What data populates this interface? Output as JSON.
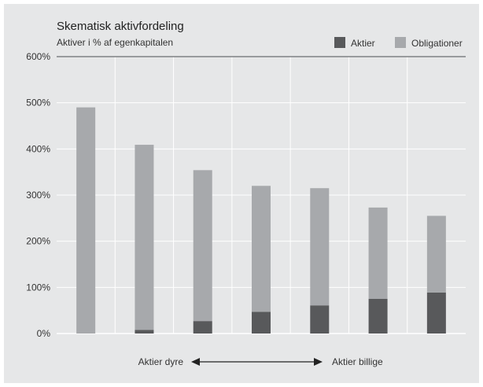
{
  "chart_data": {
    "type": "bar",
    "stacked": true,
    "title": "Skematisk aktivfordeling",
    "subtitle": "Aktiver i % af egenkapitalen",
    "categories": [
      "",
      "",
      "",
      "",
      "",
      "",
      ""
    ],
    "series": [
      {
        "name": "Aktier",
        "color": "#58595b",
        "values": [
          0,
          8,
          27,
          47,
          61,
          75,
          89
        ]
      },
      {
        "name": "Obligationer",
        "color": "#a7a9ac",
        "values": [
          490,
          401,
          327,
          273,
          254,
          198,
          166
        ]
      }
    ],
    "ylim": [
      0,
      600
    ],
    "yticks": [
      "0%",
      "100%",
      "200%",
      "300%",
      "400%",
      "500%",
      "600%"
    ],
    "ytick_values": [
      0,
      100,
      200,
      300,
      400,
      500,
      600
    ],
    "grid": true,
    "legend_position": "top-right",
    "x_axis_annotation": {
      "left": "Aktier dyre",
      "right": "Aktier billige"
    },
    "background_color": "#e6e7e8"
  }
}
